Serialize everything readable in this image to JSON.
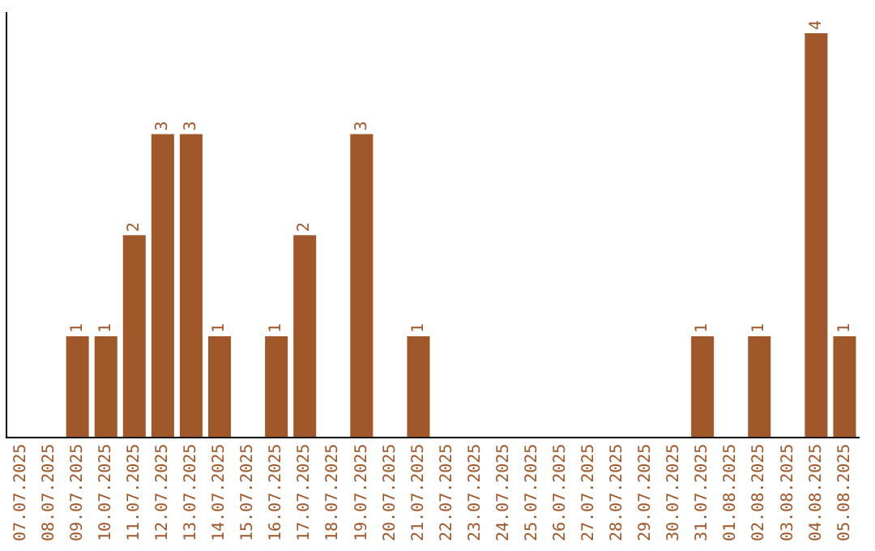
{
  "chart_data": {
    "type": "bar",
    "categories": [
      "07.07.2025",
      "08.07.2025",
      "09.07.2025",
      "10.07.2025",
      "11.07.2025",
      "12.07.2025",
      "13.07.2025",
      "14.07.2025",
      "15.07.2025",
      "16.07.2025",
      "17.07.2025",
      "18.07.2025",
      "19.07.2025",
      "20.07.2025",
      "21.07.2025",
      "22.07.2025",
      "23.07.2025",
      "24.07.2025",
      "25.07.2025",
      "26.07.2025",
      "27.07.2025",
      "28.07.2025",
      "29.07.2025",
      "30.07.2025",
      "31.07.2025",
      "01.08.2025",
      "02.08.2025",
      "03.08.2025",
      "04.08.2025",
      "05.08.2025"
    ],
    "values": [
      0,
      0,
      1,
      1,
      2,
      3,
      3,
      1,
      0,
      1,
      2,
      0,
      3,
      0,
      1,
      0,
      0,
      0,
      0,
      0,
      0,
      0,
      0,
      0,
      1,
      0,
      1,
      0,
      4,
      1
    ],
    "value_labels": [
      null,
      null,
      "1",
      "1",
      "2",
      "3",
      "3",
      "1",
      null,
      "1",
      "2",
      null,
      "3",
      null,
      "1",
      null,
      null,
      null,
      null,
      null,
      null,
      null,
      null,
      null,
      "1",
      null,
      "1",
      null,
      "4",
      "1"
    ],
    "color": "#a0582a",
    "ylim": [
      0,
      4.2
    ],
    "tick_labels": "x",
    "grid": false,
    "legend": false
  }
}
